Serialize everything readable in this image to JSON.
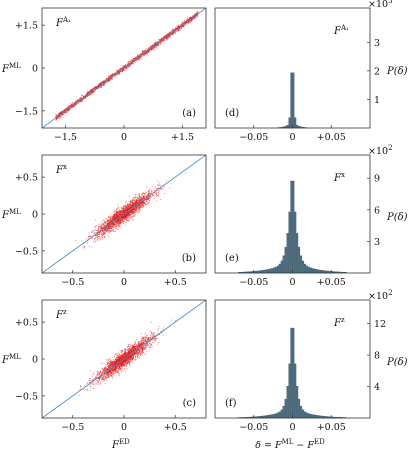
{
  "chart_data": [
    {
      "panel": "(a)",
      "type": "scatter",
      "label": "F^{A_1}",
      "label_base": "F",
      "label_sup": "A₁",
      "xlabel": "",
      "ylabel": "F^ML",
      "ylabel_base": "F",
      "ylabel_sup": "ML",
      "xlim": [
        -2.1,
        2.1
      ],
      "ylim": [
        -2.1,
        2.1
      ],
      "xticks": [
        -1.5,
        0,
        1.5
      ],
      "xtick_labels": [
        "−1.5",
        "0",
        "+1.5"
      ],
      "yticks": [
        -1.5,
        0,
        1.5
      ],
      "ytick_labels": [
        "−1.5",
        "0",
        "+1.5"
      ],
      "reference_line": "y = x",
      "spread": 0.045,
      "range": [
        -1.75,
        1.9
      ],
      "point_color": "#e11b1b",
      "line_color": "#4a8fc7"
    },
    {
      "panel": "(b)",
      "type": "scatter",
      "label": "F^x",
      "label_base": "F",
      "label_sup": "x",
      "xlabel": "",
      "ylabel": "F^ML",
      "ylabel_base": "F",
      "ylabel_sup": "ML",
      "xlim": [
        -0.8,
        0.8
      ],
      "ylim": [
        -0.8,
        0.8
      ],
      "xticks": [
        -0.5,
        0,
        0.5
      ],
      "xtick_labels": [
        "−0.5",
        "0",
        "+0.5"
      ],
      "yticks": [
        -0.5,
        0,
        0.5
      ],
      "ytick_labels": [
        "−0.5",
        "0",
        "+0.5"
      ],
      "reference_line": "y = x",
      "spread": 0.045,
      "sigma": 0.14,
      "point_color": "#e11b1b",
      "line_color": "#4a8fc7"
    },
    {
      "panel": "(c)",
      "type": "scatter",
      "label": "F^z",
      "label_base": "F",
      "label_sup": "z",
      "xlabel": "F^ED",
      "xlabel_base": "F",
      "xlabel_sup": "ED",
      "ylabel": "F^ML",
      "ylabel_base": "F",
      "ylabel_sup": "ML",
      "xlim": [
        -0.8,
        0.8
      ],
      "ylim": [
        -0.8,
        0.8
      ],
      "xticks": [
        -0.5,
        0,
        0.5
      ],
      "xtick_labels": [
        "−0.5",
        "0",
        "+0.5"
      ],
      "yticks": [
        -0.5,
        0,
        0.5
      ],
      "ytick_labels": [
        "−0.5",
        "0",
        "+0.5"
      ],
      "reference_line": "y = x",
      "spread": 0.045,
      "sigma": 0.14,
      "point_color": "#e11b1b",
      "line_color": "#4a8fc7"
    },
    {
      "panel": "(d)",
      "type": "bar",
      "label": "F^{A_1}",
      "label_base": "F",
      "label_sup": "A₁",
      "xlabel": "",
      "ylabel": "P(δ)",
      "y_multiplier": "×10³",
      "xlim": [
        -0.1,
        0.1
      ],
      "ylim": [
        0,
        4200
      ],
      "xticks": [
        -0.05,
        0,
        0.05
      ],
      "xtick_labels": [
        "−0.05",
        "0",
        "+0.05"
      ],
      "yticks": [
        1000,
        2000,
        3000
      ],
      "ytick_labels": [
        "1",
        "2",
        "3"
      ],
      "bin_width": 0.0025,
      "peak": 4000,
      "core_width": 0.0018,
      "tail_width": 0.007,
      "tail_frac": 0.05,
      "bar_color": "#4c7187"
    },
    {
      "panel": "(e)",
      "type": "bar",
      "label": "F^x",
      "label_base": "F",
      "label_sup": "x",
      "xlabel": "",
      "ylabel": "P(δ)",
      "y_multiplier": "×10²",
      "xlim": [
        -0.1,
        0.1
      ],
      "ylim": [
        0,
        1120
      ],
      "xticks": [
        -0.05,
        0,
        0.05
      ],
      "xtick_labels": [
        "−0.05",
        "0",
        "+0.05"
      ],
      "yticks": [
        300,
        600,
        900
      ],
      "ytick_labels": [
        "3",
        "6",
        "9"
      ],
      "bin_width": 0.0025,
      "peak": 1060,
      "core_width": 0.006,
      "tail_width": 0.024,
      "tail_frac": 0.12,
      "bar_color": "#4c7187"
    },
    {
      "panel": "(f)",
      "type": "bar",
      "label": "F^z",
      "label_base": "F",
      "label_sup": "z",
      "xlabel": "δ = F^ML − F^ED",
      "ylabel": "P(δ)",
      "y_multiplier": "×10²",
      "xlim": [
        -0.1,
        0.1
      ],
      "ylim": [
        0,
        1500
      ],
      "xticks": [
        -0.05,
        0,
        0.05
      ],
      "xtick_labels": [
        "−0.05",
        "0",
        "+0.05"
      ],
      "yticks": [
        400,
        800,
        1200
      ],
      "ytick_labels": [
        "4",
        "8",
        "12"
      ],
      "bin_width": 0.0025,
      "peak": 1450,
      "core_width": 0.005,
      "tail_width": 0.022,
      "tail_frac": 0.1,
      "bar_color": "#4c7187"
    }
  ],
  "figure": {
    "delta_label": "δ = F^ML − F^ED",
    "delta_parts": [
      "δ = ",
      "F",
      "ML",
      " − ",
      "F",
      "ED"
    ]
  }
}
